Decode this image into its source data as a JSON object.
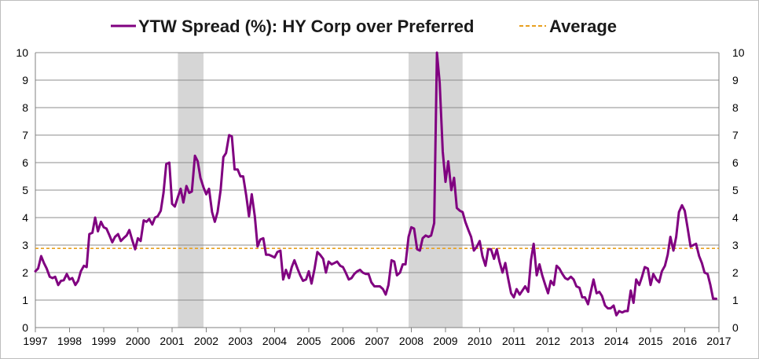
{
  "chart_data": {
    "type": "line",
    "x_unit": "year",
    "xlim": [
      1997,
      2017
    ],
    "ylim": [
      0,
      10
    ],
    "xticks": [
      "1997",
      "1998",
      "1999",
      "2000",
      "2001",
      "2002",
      "2003",
      "2004",
      "2005",
      "2006",
      "2007",
      "2008",
      "2009",
      "2010",
      "2011",
      "2012",
      "2013",
      "2014",
      "2015",
      "2016",
      "2017"
    ],
    "yticks": [
      "0",
      "1",
      "2",
      "3",
      "4",
      "5",
      "6",
      "7",
      "8",
      "9",
      "10"
    ],
    "legend": {
      "placement": "top",
      "series_label": "YTW Spread (%): HY Corp over Preferred",
      "average_label": "Average"
    },
    "colors": {
      "series": "#800080",
      "average": "#E8A020",
      "recession": "#D6D6D6",
      "grid": "#8C8C8C"
    },
    "recession_periods": [
      [
        2001.17,
        2001.92
      ],
      [
        2007.92,
        2009.5
      ]
    ],
    "average": 2.88,
    "series": [
      {
        "name": "YTW Spread (%): HY Corp over Preferred",
        "x": [
          1997.0,
          1997.08,
          1997.17,
          1997.25,
          1997.33,
          1997.42,
          1997.5,
          1997.58,
          1997.67,
          1997.75,
          1997.83,
          1997.92,
          1998.0,
          1998.08,
          1998.17,
          1998.25,
          1998.33,
          1998.42,
          1998.5,
          1998.58,
          1998.67,
          1998.75,
          1998.83,
          1998.92,
          1999.0,
          1999.08,
          1999.17,
          1999.25,
          1999.33,
          1999.42,
          1999.5,
          1999.58,
          1999.67,
          1999.75,
          1999.83,
          1999.92,
          2000.0,
          2000.08,
          2000.17,
          2000.25,
          2000.33,
          2000.42,
          2000.5,
          2000.58,
          2000.67,
          2000.75,
          2000.83,
          2000.92,
          2001.0,
          2001.08,
          2001.17,
          2001.25,
          2001.33,
          2001.42,
          2001.5,
          2001.58,
          2001.67,
          2001.75,
          2001.83,
          2001.92,
          2002.0,
          2002.08,
          2002.17,
          2002.25,
          2002.33,
          2002.42,
          2002.5,
          2002.58,
          2002.67,
          2002.75,
          2002.83,
          2002.92,
          2003.0,
          2003.08,
          2003.17,
          2003.25,
          2003.33,
          2003.42,
          2003.5,
          2003.58,
          2003.67,
          2003.75,
          2003.83,
          2003.92,
          2004.0,
          2004.08,
          2004.17,
          2004.25,
          2004.33,
          2004.42,
          2004.5,
          2004.58,
          2004.67,
          2004.75,
          2004.83,
          2004.92,
          2005.0,
          2005.08,
          2005.17,
          2005.25,
          2005.33,
          2005.42,
          2005.5,
          2005.58,
          2005.67,
          2005.75,
          2005.83,
          2005.92,
          2006.0,
          2006.08,
          2006.17,
          2006.25,
          2006.33,
          2006.42,
          2006.5,
          2006.58,
          2006.67,
          2006.75,
          2006.83,
          2006.92,
          2007.0,
          2007.08,
          2007.17,
          2007.25,
          2007.33,
          2007.42,
          2007.5,
          2007.58,
          2007.67,
          2007.75,
          2007.83,
          2007.92,
          2008.0,
          2008.08,
          2008.17,
          2008.25,
          2008.33,
          2008.42,
          2008.5,
          2008.58,
          2008.67,
          2008.75,
          2008.83,
          2008.92,
          2009.0,
          2009.08,
          2009.17,
          2009.25,
          2009.33,
          2009.42,
          2009.5,
          2009.58,
          2009.67,
          2009.75,
          2009.83,
          2009.92,
          2010.0,
          2010.08,
          2010.17,
          2010.25,
          2010.33,
          2010.42,
          2010.5,
          2010.58,
          2010.67,
          2010.75,
          2010.83,
          2010.92,
          2011.0,
          2011.08,
          2011.17,
          2011.25,
          2011.33,
          2011.42,
          2011.5,
          2011.58,
          2011.67,
          2011.75,
          2011.83,
          2011.92,
          2012.0,
          2012.08,
          2012.17,
          2012.25,
          2012.33,
          2012.42,
          2012.5,
          2012.58,
          2012.67,
          2012.75,
          2012.83,
          2012.92,
          2013.0,
          2013.08,
          2013.17,
          2013.25,
          2013.33,
          2013.42,
          2013.5,
          2013.58,
          2013.67,
          2013.75,
          2013.83,
          2013.92,
          2014.0,
          2014.08,
          2014.17,
          2014.25,
          2014.33,
          2014.42,
          2014.5,
          2014.58,
          2014.67,
          2014.75,
          2014.83,
          2014.92,
          2015.0,
          2015.08,
          2015.17,
          2015.25,
          2015.33,
          2015.42,
          2015.5,
          2015.58,
          2015.67,
          2015.75,
          2015.83,
          2015.92,
          2016.0,
          2016.08,
          2016.17,
          2016.25,
          2016.33,
          2016.42,
          2016.5,
          2016.58,
          2016.67,
          2016.75,
          2016.83,
          2016.92
        ],
        "values": [
          2.05,
          2.15,
          2.6,
          2.35,
          2.15,
          1.85,
          1.8,
          1.85,
          1.55,
          1.7,
          1.72,
          1.95,
          1.75,
          1.8,
          1.55,
          1.7,
          2.05,
          2.25,
          2.2,
          3.4,
          3.45,
          4.0,
          3.5,
          3.85,
          3.65,
          3.6,
          3.35,
          3.1,
          3.3,
          3.4,
          3.15,
          3.25,
          3.35,
          3.55,
          3.2,
          2.85,
          3.25,
          3.15,
          3.9,
          3.85,
          3.95,
          3.75,
          4.0,
          4.05,
          4.25,
          4.9,
          5.95,
          6.0,
          4.5,
          4.4,
          4.75,
          5.05,
          4.55,
          5.15,
          4.9,
          4.95,
          6.25,
          6.05,
          5.45,
          5.1,
          4.85,
          5.05,
          4.2,
          3.85,
          4.2,
          5.0,
          6.2,
          6.35,
          7.0,
          6.95,
          5.75,
          5.75,
          5.5,
          5.5,
          4.8,
          4.05,
          4.85,
          4.05,
          2.95,
          3.2,
          3.25,
          2.65,
          2.65,
          2.6,
          2.55,
          2.75,
          2.8,
          1.75,
          2.1,
          1.8,
          2.2,
          2.45,
          2.15,
          1.9,
          1.7,
          1.75,
          2.05,
          1.6,
          2.15,
          2.75,
          2.65,
          2.5,
          2.0,
          2.4,
          2.3,
          2.35,
          2.4,
          2.25,
          2.2,
          2.0,
          1.75,
          1.8,
          1.95,
          2.05,
          2.1,
          2.0,
          1.95,
          1.95,
          1.65,
          1.5,
          1.5,
          1.5,
          1.4,
          1.2,
          1.55,
          2.45,
          2.4,
          1.9,
          2.0,
          2.3,
          2.3,
          3.3,
          3.65,
          3.6,
          2.85,
          2.8,
          3.25,
          3.35,
          3.3,
          3.35,
          3.8,
          10.0,
          8.9,
          6.4,
          5.3,
          6.05,
          5.0,
          5.45,
          4.35,
          4.25,
          4.2,
          3.85,
          3.55,
          3.3,
          2.8,
          2.95,
          3.15,
          2.6,
          2.25,
          2.85,
          2.85,
          2.5,
          2.85,
          2.4,
          2.0,
          2.35,
          1.8,
          1.25,
          1.1,
          1.4,
          1.2,
          1.35,
          1.5,
          1.3,
          2.45,
          3.05,
          1.9,
          2.3,
          1.9,
          1.55,
          1.25,
          1.7,
          1.55,
          2.25,
          2.15,
          1.95,
          1.8,
          1.75,
          1.85,
          1.75,
          1.5,
          1.45,
          1.1,
          1.1,
          0.85,
          1.3,
          1.75,
          1.25,
          1.3,
          1.15,
          0.8,
          0.7,
          0.7,
          0.8,
          0.45,
          0.6,
          0.55,
          0.6,
          0.6,
          1.35,
          0.9,
          1.75,
          1.55,
          1.85,
          2.2,
          2.15,
          1.55,
          1.95,
          1.75,
          1.65,
          2.05,
          2.25,
          2.65,
          3.3,
          2.8,
          3.3,
          4.2,
          4.45,
          4.25,
          3.65,
          2.95,
          3.0,
          3.05,
          2.6,
          2.35,
          2.0,
          1.95,
          1.55,
          1.05,
          1.05
        ]
      }
    ]
  }
}
